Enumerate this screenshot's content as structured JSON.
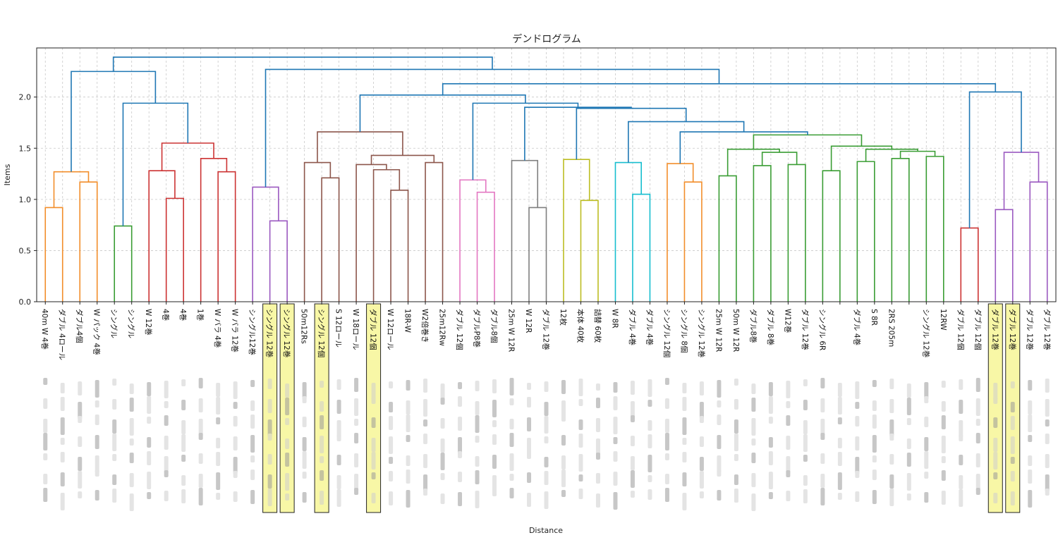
{
  "chart_data": {
    "type": "dendrogram",
    "title": "デンドログラム",
    "xlabel": "Distance",
    "ylabel": "Items",
    "ylim": [
      0,
      2.48
    ],
    "yticks": [
      "0.0",
      "0.5",
      "1.0",
      "1.5",
      "2.0"
    ],
    "grid": true,
    "colors": {
      "orange": "#f28e2b",
      "green": "#3a9d34",
      "red": "#cc3333",
      "purple": "#9b59c0",
      "brown": "#8c564b",
      "pink": "#e377c2",
      "gray": "#7f7f7f",
      "olive": "#bcbd22",
      "cyan": "#17becf",
      "blue": "#1f77b4"
    },
    "leaves": [
      {
        "label": "40m W 4巻",
        "highlight": false
      },
      {
        "label": "ダブル 4ロール",
        "highlight": false
      },
      {
        "label": "ダブル4個",
        "highlight": false
      },
      {
        "label": "W パック 4巻",
        "highlight": false
      },
      {
        "label": "シングル",
        "highlight": false
      },
      {
        "label": "シングル",
        "highlight": false
      },
      {
        "label": "W 12巻",
        "highlight": false
      },
      {
        "label": "4巻",
        "highlight": false
      },
      {
        "label": "4巻",
        "highlight": false
      },
      {
        "label": "1巻",
        "highlight": false
      },
      {
        "label": "W バラ 4巻",
        "highlight": false
      },
      {
        "label": "W バラ 12巻",
        "highlight": false
      },
      {
        "label": "シングル12巻",
        "highlight": false
      },
      {
        "label": "シングル 12巻",
        "highlight": true
      },
      {
        "label": "シングル 12巻",
        "highlight": true
      },
      {
        "label": "50m12Rs",
        "highlight": false
      },
      {
        "label": "シングル 12個",
        "highlight": true
      },
      {
        "label": "S 12ロール",
        "highlight": false
      },
      {
        "label": "W 18ロール",
        "highlight": false
      },
      {
        "label": "ダブル 12個",
        "highlight": true
      },
      {
        "label": "W 12ロール",
        "highlight": false
      },
      {
        "label": "18R-W",
        "highlight": false
      },
      {
        "label": "W2倍巻き",
        "highlight": false
      },
      {
        "label": "25m12Rw",
        "highlight": false
      },
      {
        "label": "ダブル 12個",
        "highlight": false
      },
      {
        "label": "ダブルP8巻",
        "highlight": false
      },
      {
        "label": "ダブル8個",
        "highlight": false
      },
      {
        "label": "25m W 12R",
        "highlight": false
      },
      {
        "label": "W 12R",
        "highlight": false
      },
      {
        "label": "ダブル 12巻",
        "highlight": false
      },
      {
        "label": "12枚",
        "highlight": false
      },
      {
        "label": "本体 40枚",
        "highlight": false
      },
      {
        "label": "詰替 60枚",
        "highlight": false
      },
      {
        "label": "W 8R",
        "highlight": false
      },
      {
        "label": "ダブル 4巻",
        "highlight": false
      },
      {
        "label": "ダブル 4巻",
        "highlight": false
      },
      {
        "label": "シングル 12個",
        "highlight": false
      },
      {
        "label": "シングル 8個",
        "highlight": false
      },
      {
        "label": "シングル 12巻",
        "highlight": false
      },
      {
        "label": "25m W 12R",
        "highlight": false
      },
      {
        "label": "50m W 12R",
        "highlight": false
      },
      {
        "label": "ダブル8巻",
        "highlight": false
      },
      {
        "label": "ダブル 8巻",
        "highlight": false
      },
      {
        "label": "W12巻",
        "highlight": false
      },
      {
        "label": "ダブル 12巻",
        "highlight": false
      },
      {
        "label": "シングル 6R",
        "highlight": false
      },
      {
        "label": "",
        "highlight": false
      },
      {
        "label": "ダブル 4巻",
        "highlight": false
      },
      {
        "label": "S 8R",
        "highlight": false
      },
      {
        "label": "2RS 205m",
        "highlight": false
      },
      {
        "label": "",
        "highlight": false
      },
      {
        "label": "シングル 12巻",
        "highlight": false
      },
      {
        "label": "12RW",
        "highlight": false
      },
      {
        "label": "ダブル 12個",
        "highlight": false
      },
      {
        "label": "ダブル 12個",
        "highlight": false
      },
      {
        "label": "ダブル 12巻",
        "highlight": true
      },
      {
        "label": "ダブル 12巻",
        "highlight": true
      },
      {
        "label": "ダブル 12巻",
        "highlight": false
      },
      {
        "label": "ダブル 12巻",
        "highlight": false
      }
    ],
    "links": [
      {
        "a": 0,
        "b": 1,
        "h": 0.92,
        "c": "orange"
      },
      {
        "a": 2,
        "b": 3,
        "h": 1.17,
        "c": "orange"
      },
      {
        "a": "L0",
        "b": "L1",
        "h": 1.27,
        "c": "orange"
      },
      {
        "a": 4,
        "b": 5,
        "h": 0.74,
        "c": "green"
      },
      {
        "a": 7,
        "b": 8,
        "h": 1.01,
        "c": "red"
      },
      {
        "a": 6,
        "b": "L4",
        "h": 1.28,
        "c": "red"
      },
      {
        "a": 10,
        "b": 11,
        "h": 1.27,
        "c": "red"
      },
      {
        "a": 9,
        "b": "L6",
        "h": 1.4,
        "c": "red"
      },
      {
        "a": "L5",
        "b": "L7",
        "h": 1.55,
        "c": "red"
      },
      {
        "a": "L3",
        "b": "L8",
        "h": 1.94,
        "c": "blue"
      },
      {
        "a": "L2",
        "b": "L9",
        "h": 2.25,
        "c": "blue"
      },
      {
        "a": 13,
        "b": 14,
        "h": 0.79,
        "c": "purple"
      },
      {
        "a": 12,
        "b": "L11",
        "h": 1.12,
        "c": "purple"
      },
      {
        "a": 16,
        "b": 17,
        "h": 1.21,
        "c": "brown"
      },
      {
        "a": 15,
        "b": "L13",
        "h": 1.36,
        "c": "brown"
      },
      {
        "a": 20,
        "b": 21,
        "h": 1.09,
        "c": "brown"
      },
      {
        "a": 19,
        "b": "L15",
        "h": 1.29,
        "c": "brown"
      },
      {
        "a": 18,
        "b": "L16",
        "h": 1.34,
        "c": "brown"
      },
      {
        "a": 22,
        "b": 23,
        "h": 1.36,
        "c": "brown"
      },
      {
        "a": "L17",
        "b": "L18",
        "h": 1.43,
        "c": "brown"
      },
      {
        "a": "L14",
        "b": "L19",
        "h": 1.66,
        "c": "brown"
      },
      {
        "a": 25,
        "b": 26,
        "h": 1.07,
        "c": "pink"
      },
      {
        "a": 24,
        "b": "L21",
        "h": 1.19,
        "c": "pink"
      },
      {
        "a": 28,
        "b": 29,
        "h": 0.92,
        "c": "gray"
      },
      {
        "a": 27,
        "b": "L23",
        "h": 1.38,
        "c": "gray"
      },
      {
        "a": 31,
        "b": 32,
        "h": 0.99,
        "c": "olive"
      },
      {
        "a": 30,
        "b": "L25",
        "h": 1.39,
        "c": "olive"
      },
      {
        "a": 34,
        "b": 35,
        "h": 1.05,
        "c": "cyan"
      },
      {
        "a": 33,
        "b": "L27",
        "h": 1.36,
        "c": "cyan"
      },
      {
        "a": 37,
        "b": 38,
        "h": 1.17,
        "c": "orange"
      },
      {
        "a": 36,
        "b": "L29",
        "h": 1.35,
        "c": "orange"
      },
      {
        "a": 39,
        "b": 40,
        "h": 1.23,
        "c": "green"
      },
      {
        "a": 41,
        "b": 42,
        "h": 1.33,
        "c": "green"
      },
      {
        "a": 43,
        "b": 44,
        "h": 1.34,
        "c": "green"
      },
      {
        "a": "L32",
        "b": "L33",
        "h": 1.46,
        "c": "green"
      },
      {
        "a": "L31",
        "b": "L34",
        "h": 1.49,
        "c": "green"
      },
      {
        "a": 45,
        "b": 46,
        "h": 1.28,
        "c": "green"
      },
      {
        "a": 47,
        "b": 48,
        "h": 1.37,
        "c": "green"
      },
      {
        "a": 49,
        "b": 50,
        "h": 1.4,
        "c": "green"
      },
      {
        "a": 51,
        "b": 52,
        "h": 1.42,
        "c": "green"
      },
      {
        "a": "L38",
        "b": "L39",
        "h": 1.47,
        "c": "green"
      },
      {
        "a": "L37",
        "b": "L40",
        "h": 1.49,
        "c": "green"
      },
      {
        "a": "L36",
        "b": "L41",
        "h": 1.52,
        "c": "green"
      },
      {
        "a": "L35",
        "b": "L42",
        "h": 1.63,
        "c": "green"
      },
      {
        "a": "L30",
        "b": "L43",
        "h": 1.66,
        "c": "blue"
      },
      {
        "a": "L28",
        "b": "L44",
        "h": 1.76,
        "c": "blue"
      },
      {
        "a": "L26",
        "b": "L45",
        "h": 1.89,
        "c": "blue"
      },
      {
        "a": "L24",
        "b": "L46",
        "h": 1.9,
        "c": "blue"
      },
      {
        "a": "L22",
        "b": "L47",
        "h": 1.94,
        "c": "blue"
      },
      {
        "a": "L20",
        "b": "L48",
        "h": 2.02,
        "c": "blue"
      },
      {
        "a": 53,
        "b": 54,
        "h": 0.72,
        "c": "red"
      },
      {
        "a": 55,
        "b": 56,
        "h": 0.9,
        "c": "purple"
      },
      {
        "a": 57,
        "b": 58,
        "h": 1.17,
        "c": "purple"
      },
      {
        "a": "L51",
        "b": "L52",
        "h": 1.46,
        "c": "purple"
      },
      {
        "a": "L50",
        "b": "L53",
        "h": 2.05,
        "c": "blue"
      },
      {
        "a": "L49",
        "b": "L54",
        "h": 2.13,
        "c": "blue"
      },
      {
        "a": "L12",
        "b": "L55",
        "h": 2.27,
        "c": "blue"
      },
      {
        "a": "L10",
        "b": "L56",
        "h": 2.39,
        "c": "blue"
      }
    ]
  }
}
